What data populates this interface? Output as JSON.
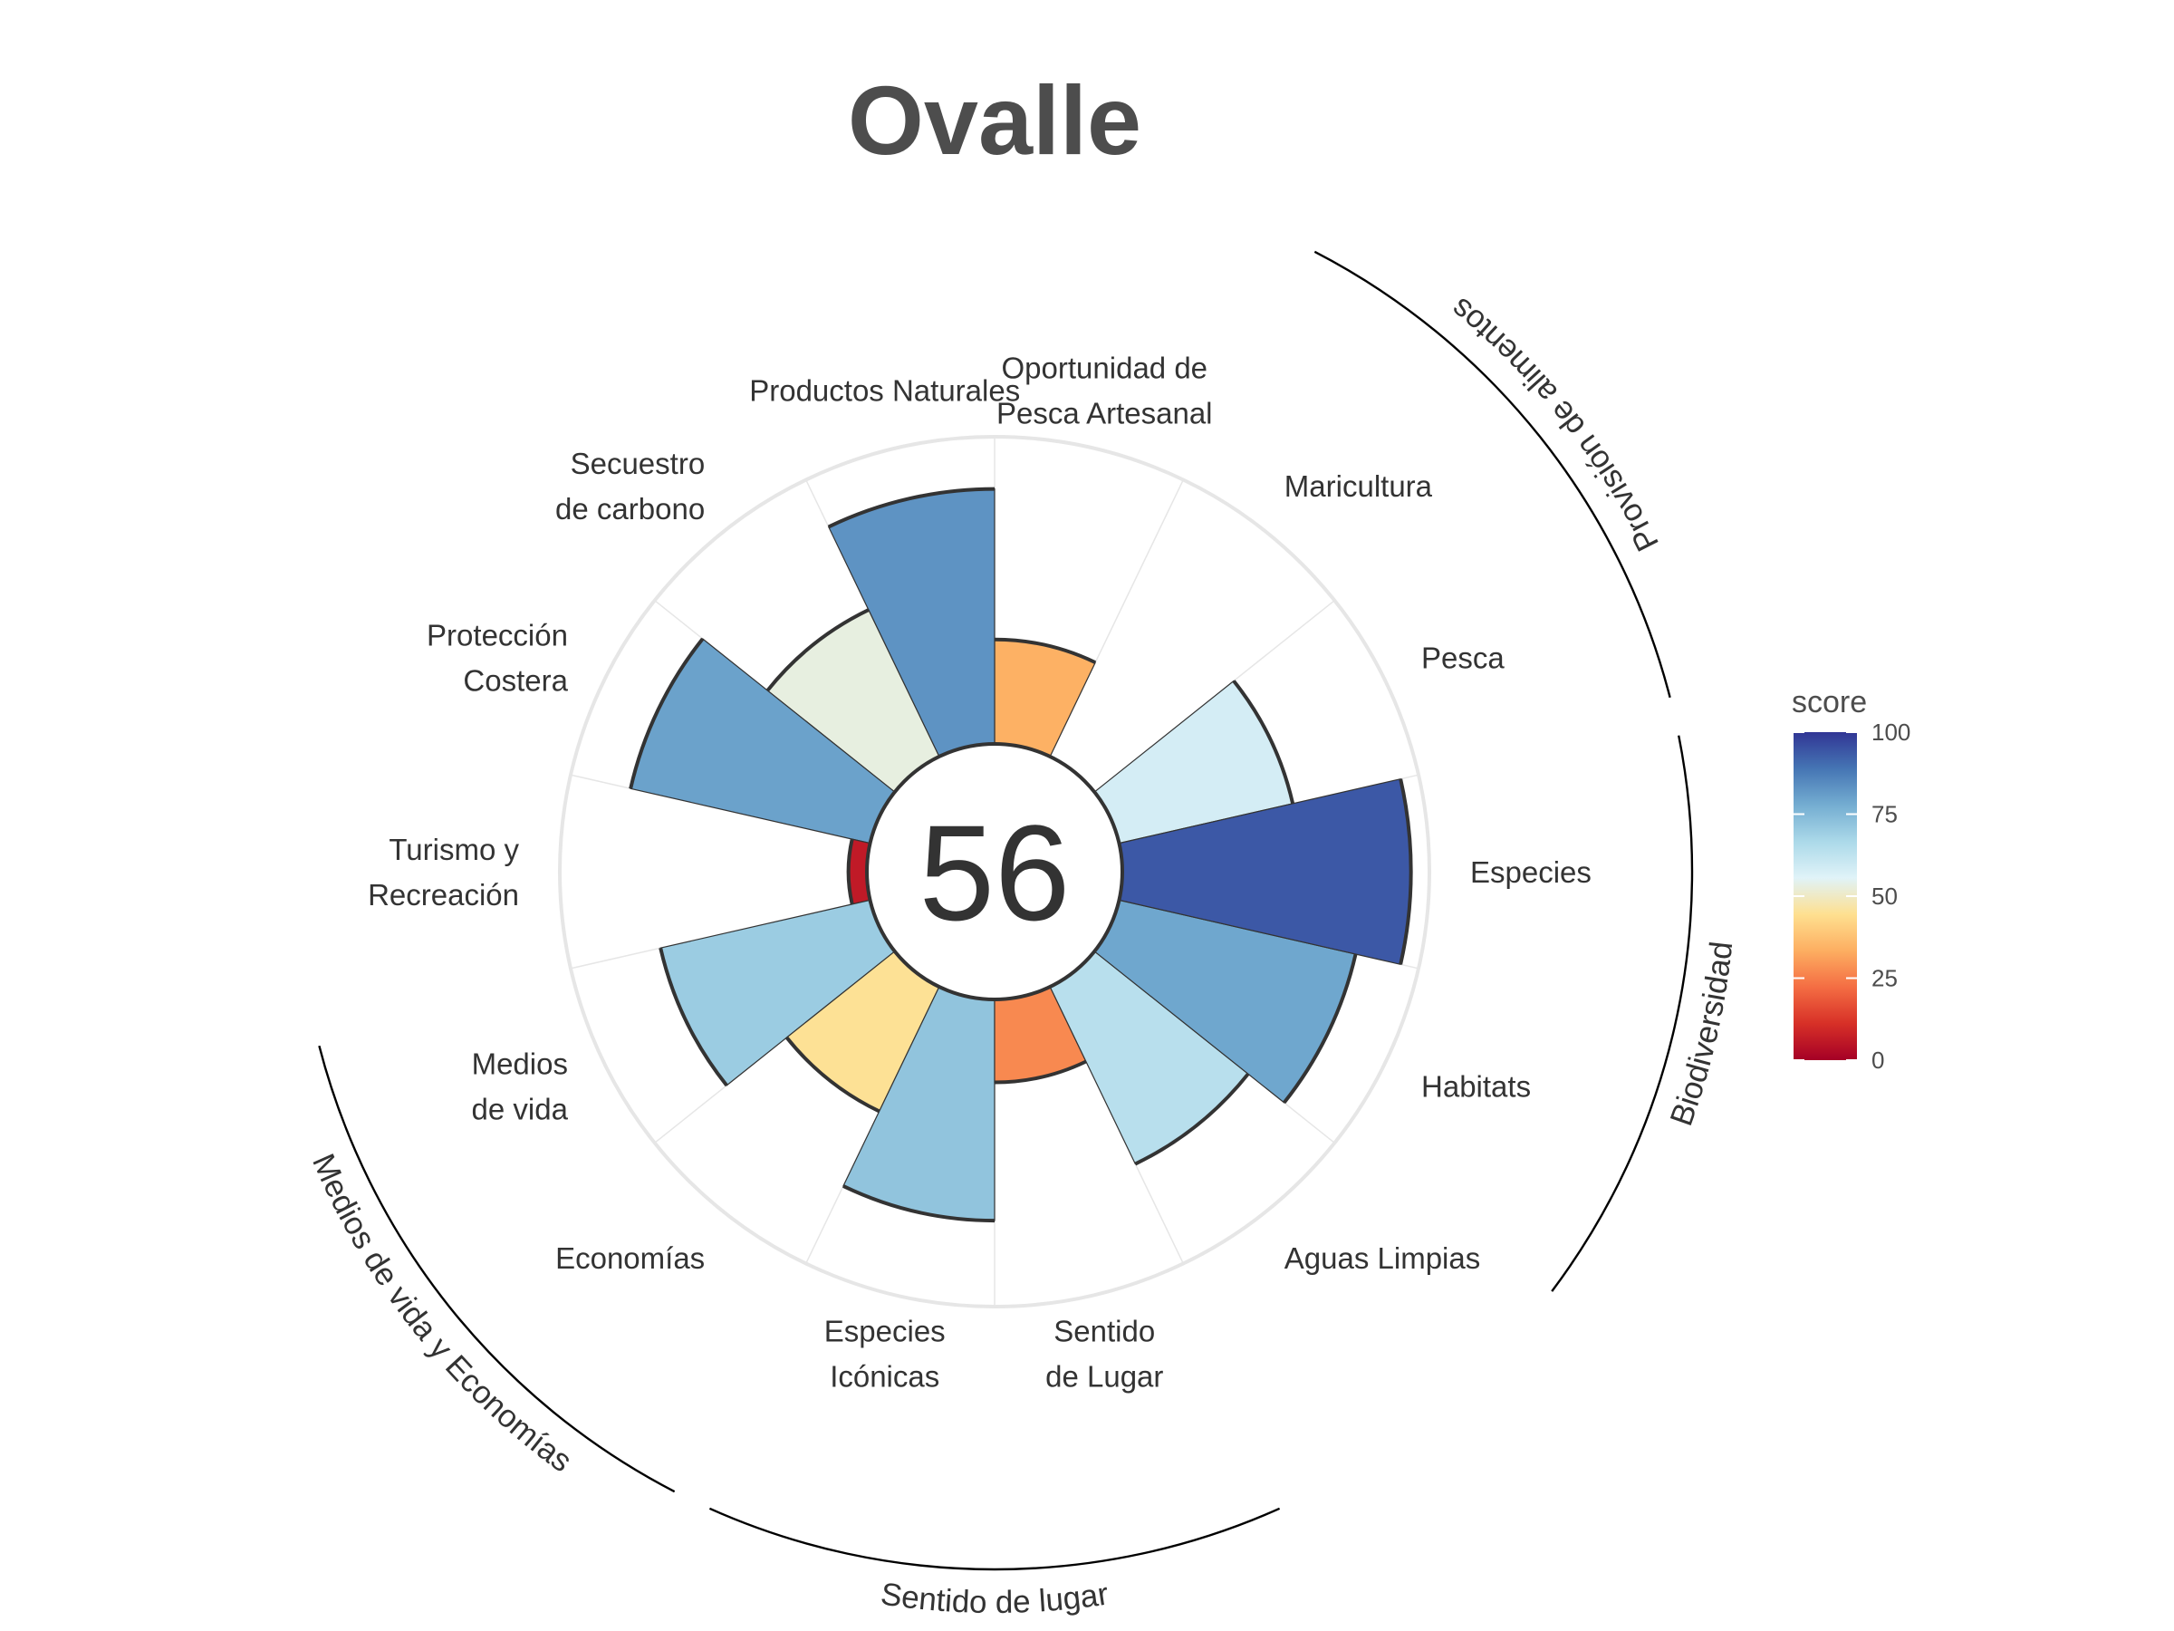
{
  "chart_data": {
    "type": "polar-bar",
    "title": "Ovalle",
    "center_score": "56",
    "ylim": [
      0,
      100
    ],
    "grid": true,
    "goals": [
      {
        "label": [
          "Pesca"
        ],
        "value": 58
      },
      {
        "label": [
          "Maricultura"
        ],
        "value": 0
      },
      {
        "label": [
          "Oportunidad de",
          "Pesca Artesanal"
        ],
        "value": 34
      },
      {
        "label": [
          "Productos Naturales"
        ],
        "value": 83
      },
      {
        "label": [
          "Secuestro",
          "de carbono"
        ],
        "value": 53
      },
      {
        "label": [
          "Protección",
          "Costera"
        ],
        "value": 80
      },
      {
        "label": [
          "Turismo y",
          "Recreación"
        ],
        "value": 6
      },
      {
        "label": [
          "Medios",
          "de vida"
        ],
        "value": 70
      },
      {
        "label": [
          "Economías"
        ],
        "value": 45
      },
      {
        "label": [
          "Especies",
          "Icónicas"
        ],
        "value": 72
      },
      {
        "label": [
          "Sentido",
          "de Lugar"
        ],
        "value": 27
      },
      {
        "label": [
          "Aguas Limpias"
        ],
        "value": 64
      },
      {
        "label": [
          "Habitats"
        ],
        "value": 79
      },
      {
        "label": [
          "Especies"
        ],
        "value": 94
      }
    ],
    "groups": [
      {
        "name": "Provisión de alimentos",
        "goals": [
          0,
          1
        ]
      },
      {
        "name": "Biodiversidad",
        "goals": [
          12,
          13
        ]
      },
      {
        "name": "Sentido de lugar",
        "goals": [
          9,
          10
        ]
      },
      {
        "name": "Medios de vida y Economías",
        "goals": [
          7,
          8
        ]
      }
    ],
    "legend": {
      "title": "score",
      "ticks": [
        "0",
        "25",
        "50",
        "75",
        "100"
      ],
      "placement": "right"
    },
    "colors": {
      "scale": [
        "#a50026",
        "#d73027",
        "#f46d43",
        "#fdae61",
        "#fee090",
        "#e0f3f8",
        "#abd9e9",
        "#74add1",
        "#4575b4",
        "#313695"
      ],
      "outline": "#333333",
      "grid": "#e6e6e6"
    }
  }
}
